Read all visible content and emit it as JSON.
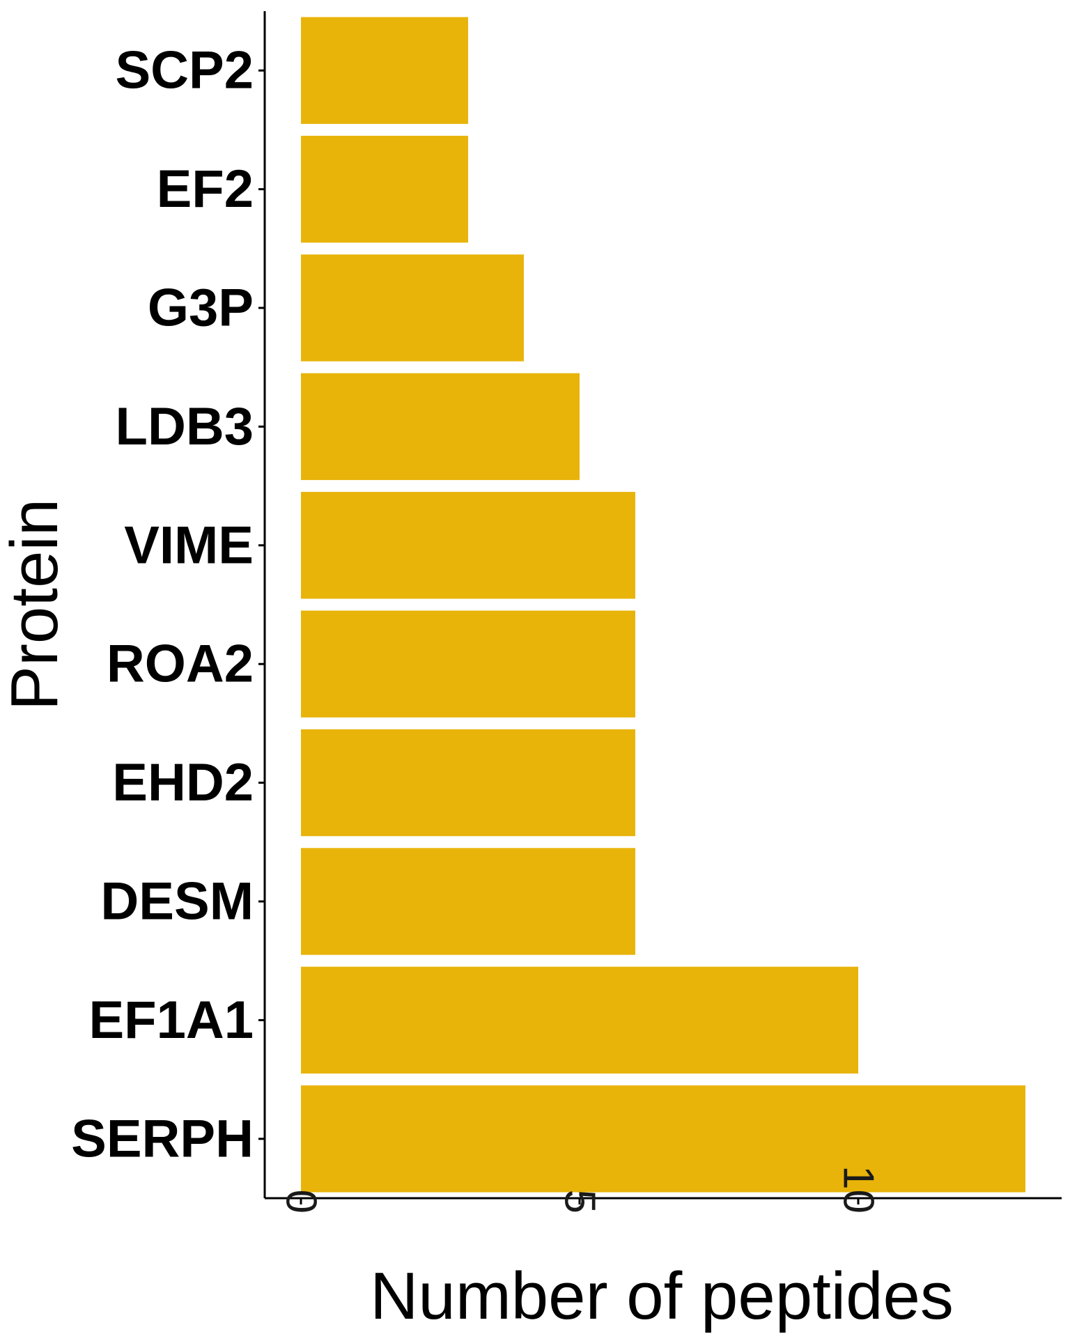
{
  "chart_data": {
    "type": "bar",
    "orientation": "horizontal",
    "categories": [
      "SCP2",
      "EF2",
      "G3P",
      "LDB3",
      "VIME",
      "ROA2",
      "EHD2",
      "DESM",
      "EF1A1",
      "SERPH"
    ],
    "values": [
      3,
      3,
      4,
      5,
      6,
      6,
      6,
      6,
      10,
      13
    ],
    "title": "",
    "xlabel": "Number of peptides",
    "ylabel": "Protein",
    "xlim": [
      -0.65,
      13.65
    ],
    "xticks": [
      0,
      5,
      10
    ],
    "xtick_labels": [
      "0",
      "5",
      "10"
    ],
    "bar_color": "#E8B40A",
    "axis_color": "#000000",
    "grid": false,
    "legend": "none"
  }
}
